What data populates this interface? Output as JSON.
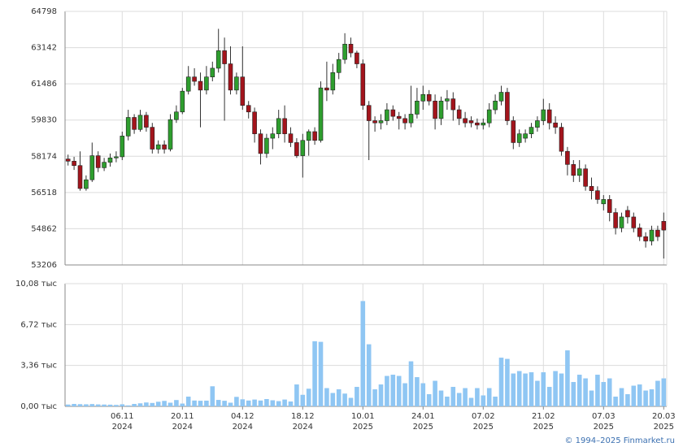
{
  "chart_data": [
    {
      "type": "candlestick",
      "open": [
        58050,
        57950,
        57750,
        56700,
        57100,
        58200,
        57650,
        57900,
        58100,
        58150,
        59100,
        59950,
        59400,
        60050,
        59500,
        58500,
        58700,
        58500,
        59850,
        60200,
        61150,
        61800,
        61600,
        61200,
        61800,
        62200,
        63000,
        62400,
        61200,
        61800,
        60500,
        60200,
        59200,
        58300,
        59000,
        59200,
        59900,
        59200,
        58800,
        58200,
        58900,
        59300,
        58900,
        61300,
        61200,
        62000,
        62600,
        63300,
        62900,
        62400,
        60500,
        59800,
        59700,
        59800,
        60300,
        60000,
        59900,
        59700,
        60100,
        60700,
        61000,
        60700,
        59900,
        60700,
        60800,
        60300,
        59900,
        59800,
        59700,
        59600,
        59700,
        60300,
        60700,
        61100,
        59800,
        58800,
        59000,
        59200,
        59500,
        59800,
        60300,
        59700,
        59500,
        58400,
        57800,
        57300,
        57600,
        56800,
        56600,
        56000,
        56200,
        55600,
        54900,
        55700,
        55400,
        54900,
        54500,
        54300,
        54800,
        55200
      ],
      "high": [
        58250,
        58150,
        58400,
        57300,
        58800,
        58400,
        58100,
        58300,
        58400,
        59300,
        60300,
        60100,
        60300,
        60200,
        59700,
        58900,
        58900,
        60100,
        60500,
        61300,
        62300,
        62200,
        62000,
        62300,
        62500,
        64000,
        63600,
        63200,
        62000,
        63200,
        60700,
        60400,
        59400,
        59200,
        59500,
        60300,
        60500,
        59500,
        59000,
        59200,
        59400,
        59500,
        61600,
        62500,
        62400,
        62900,
        63800,
        63600,
        63000,
        62600,
        60700,
        60000,
        60100,
        60600,
        60500,
        60200,
        60100,
        61400,
        61300,
        61400,
        61200,
        61000,
        60900,
        61200,
        61100,
        60500,
        60200,
        60000,
        59900,
        59900,
        60600,
        61000,
        61400,
        61300,
        60000,
        59400,
        59400,
        59700,
        60000,
        60800,
        60600,
        60000,
        59700,
        58600,
        58000,
        58000,
        57800,
        57200,
        56800,
        56400,
        56400,
        55800,
        55600,
        55900,
        55600,
        55100,
        54700,
        55000,
        55000,
        55600
      ],
      "low": [
        57750,
        57550,
        56600,
        56600,
        57000,
        57450,
        57500,
        57700,
        57900,
        58000,
        58900,
        59200,
        59300,
        59300,
        58300,
        58300,
        58300,
        58400,
        59700,
        60100,
        61000,
        61400,
        59500,
        61000,
        61600,
        62000,
        59800,
        61000,
        61000,
        60300,
        59900,
        58800,
        57800,
        58100,
        58500,
        59000,
        58800,
        58600,
        58100,
        57200,
        58200,
        58700,
        58800,
        60700,
        61000,
        61700,
        62400,
        62700,
        62200,
        60300,
        58000,
        59300,
        59400,
        59600,
        59800,
        59400,
        59400,
        59500,
        59900,
        60300,
        60500,
        59400,
        59600,
        60300,
        59800,
        59600,
        59500,
        59500,
        59400,
        59400,
        59500,
        60100,
        60500,
        59600,
        58500,
        58600,
        58800,
        59000,
        59300,
        59600,
        59400,
        59200,
        58200,
        57300,
        57000,
        57000,
        56600,
        56200,
        56000,
        55700,
        55200,
        54600,
        54700,
        55100,
        54700,
        54300,
        54000,
        54100,
        54300,
        53500
      ],
      "close": [
        57950,
        57750,
        56700,
        57100,
        58200,
        57650,
        57900,
        58100,
        58150,
        59100,
        59950,
        59400,
        60050,
        59500,
        58500,
        58700,
        58500,
        59850,
        60200,
        61150,
        61800,
        61600,
        61200,
        61800,
        62200,
        63000,
        62400,
        61200,
        61800,
        60500,
        60200,
        59200,
        58300,
        59000,
        59200,
        59900,
        59200,
        58800,
        58200,
        58900,
        59300,
        58900,
        61300,
        61200,
        62000,
        62600,
        63300,
        62900,
        62400,
        60500,
        59800,
        59700,
        59800,
        60300,
        60000,
        59900,
        59700,
        60100,
        60700,
        61000,
        60700,
        59900,
        60700,
        60800,
        60300,
        59900,
        59700,
        59700,
        59600,
        59700,
        60300,
        60700,
        61100,
        59800,
        58800,
        59200,
        59200,
        59500,
        59800,
        60300,
        59700,
        59500,
        58400,
        57800,
        57300,
        57600,
        56800,
        56600,
        56200,
        56200,
        55600,
        54900,
        55400,
        55400,
        54900,
        54500,
        54300,
        54800,
        54500,
        54800
      ],
      "up_color": "#2e9e2e",
      "down_color": "#a3141c",
      "ylim": [
        53206,
        64798
      ],
      "yticks": [
        53206,
        54862,
        56518,
        58174,
        59830,
        61486,
        63142,
        64798
      ],
      "grid": true
    },
    {
      "type": "bar",
      "categories": [
        null,
        null,
        null,
        null,
        null,
        null,
        null,
        null,
        null,
        [
          "06.11",
          "2024"
        ],
        null,
        null,
        null,
        null,
        null,
        null,
        null,
        null,
        null,
        [
          "20.11",
          "2024"
        ],
        null,
        null,
        null,
        null,
        null,
        null,
        null,
        null,
        null,
        [
          "04.12",
          "2024"
        ],
        null,
        null,
        null,
        null,
        null,
        null,
        null,
        null,
        null,
        [
          "18.12",
          "2024"
        ],
        null,
        null,
        null,
        null,
        null,
        null,
        null,
        null,
        null,
        [
          "10.01",
          "2025"
        ],
        null,
        null,
        null,
        null,
        null,
        null,
        null,
        null,
        null,
        [
          "24.01",
          "2025"
        ],
        null,
        null,
        null,
        null,
        null,
        null,
        null,
        null,
        null,
        [
          "07.02",
          "2025"
        ],
        null,
        null,
        null,
        null,
        null,
        null,
        null,
        null,
        null,
        [
          "21.02",
          "2025"
        ],
        null,
        null,
        null,
        null,
        null,
        null,
        null,
        null,
        null,
        [
          "07.03",
          "2025"
        ],
        null,
        null,
        null,
        null,
        null,
        null,
        null,
        null,
        null,
        [
          "20.03",
          "2025"
        ]
      ],
      "values": [
        150,
        200,
        180,
        170,
        190,
        160,
        150,
        140,
        120,
        170,
        80,
        200,
        250,
        320,
        280,
        380,
        450,
        300,
        520,
        230,
        800,
        480,
        460,
        470,
        1650,
        530,
        460,
        300,
        780,
        580,
        480,
        560,
        480,
        600,
        500,
        430,
        560,
        400,
        1800,
        950,
        1450,
        5350,
        5300,
        1500,
        1100,
        1400,
        1050,
        700,
        1600,
        8650,
        5100,
        1400,
        1800,
        2500,
        2600,
        2500,
        1900,
        3700,
        2400,
        1900,
        1000,
        2100,
        1300,
        800,
        1600,
        1100,
        1500,
        700,
        1500,
        900,
        1500,
        800,
        4000,
        3900,
        2700,
        2900,
        2700,
        2800,
        2100,
        2800,
        1600,
        2900,
        2700,
        4600,
        2000,
        2600,
        2300,
        1300,
        2600,
        2000,
        2300,
        800,
        1500,
        1000,
        1700,
        1800,
        1300,
        1400,
        2100,
        2300
      ],
      "color": "#8fc6f3",
      "ylim": [
        0,
        10080
      ],
      "yticks": [
        {
          "value": 0,
          "label": "0,00 тыс"
        },
        {
          "value": 3360,
          "label": "3,36 тыс"
        },
        {
          "value": 6720,
          "label": "6,72 тыс"
        },
        {
          "value": 10080,
          "label": "10,08 тыс"
        }
      ],
      "grid": true
    }
  ],
  "footer": "© 1994–2025 Finmarket.ru"
}
